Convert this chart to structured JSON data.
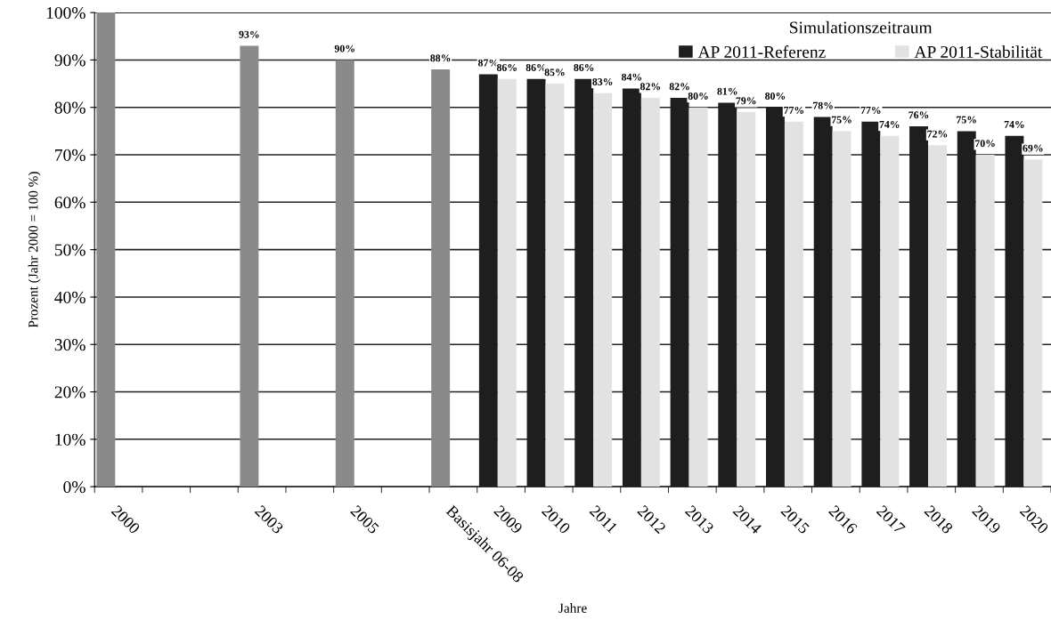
{
  "chart_data": {
    "type": "bar",
    "xlabel": "Jahre",
    "ylabel": "Prozent (Jahr 2000 = 100 %)",
    "legend_title": "Simulationszeitraum",
    "categories": [
      "2000",
      null,
      null,
      "2003",
      null,
      "2005",
      null,
      "Basisjahr 06-08",
      "2009",
      "2010",
      "2011",
      "2012",
      "2013",
      "2014",
      "2015",
      "2016",
      "2017",
      "2018",
      "2019",
      "2020"
    ],
    "series": [
      {
        "color": "#8a8a8a",
        "values": [
          100,
          null,
          null,
          93,
          null,
          90,
          null,
          88,
          null,
          null,
          null,
          null,
          null,
          null,
          null,
          null,
          null,
          null,
          null,
          null
        ],
        "value_labels": [
          null,
          null,
          null,
          "93%",
          null,
          "90%",
          null,
          "88%",
          null,
          null,
          null,
          null,
          null,
          null,
          null,
          null,
          null,
          null,
          null,
          null
        ]
      },
      {
        "name": "AP 2011-Referenz",
        "color": "#1e1e1e",
        "values": [
          null,
          null,
          null,
          null,
          null,
          null,
          null,
          null,
          87,
          86,
          86,
          84,
          82,
          81,
          80,
          78,
          77,
          76,
          75,
          74
        ],
        "value_labels": [
          null,
          null,
          null,
          null,
          null,
          null,
          null,
          null,
          "87%",
          "86%",
          "86%",
          "84%",
          "82%",
          "81%",
          "80%",
          "78%",
          "77%",
          "76%",
          "75%",
          "74%"
        ]
      },
      {
        "name": "AP 2011-Stabilität",
        "color": "#e2e2e2",
        "values": [
          null,
          null,
          null,
          null,
          null,
          null,
          null,
          null,
          86,
          85,
          83,
          82,
          80,
          79,
          77,
          75,
          74,
          72,
          70,
          69
        ],
        "value_labels": [
          null,
          null,
          null,
          null,
          null,
          null,
          null,
          null,
          "86%",
          "85%",
          "83%",
          "82%",
          "80%",
          "79%",
          "77%",
          "75%",
          "74%",
          "72%",
          "70%",
          "69%"
        ]
      }
    ],
    "ylim": [
      0,
      100
    ],
    "yticks": [
      {
        "value": 0,
        "label": "0%"
      },
      {
        "value": 10,
        "label": "10%"
      },
      {
        "value": 20,
        "label": "20%"
      },
      {
        "value": 30,
        "label": "30%"
      },
      {
        "value": 40,
        "label": "40%"
      },
      {
        "value": 50,
        "label": "50%"
      },
      {
        "value": 60,
        "label": "60%"
      },
      {
        "value": 70,
        "label": "70%"
      },
      {
        "value": 80,
        "label": "80%"
      },
      {
        "value": 90,
        "label": "90%"
      },
      {
        "value": 100,
        "label": "100%"
      }
    ],
    "grid": "y",
    "legend": "top right"
  }
}
